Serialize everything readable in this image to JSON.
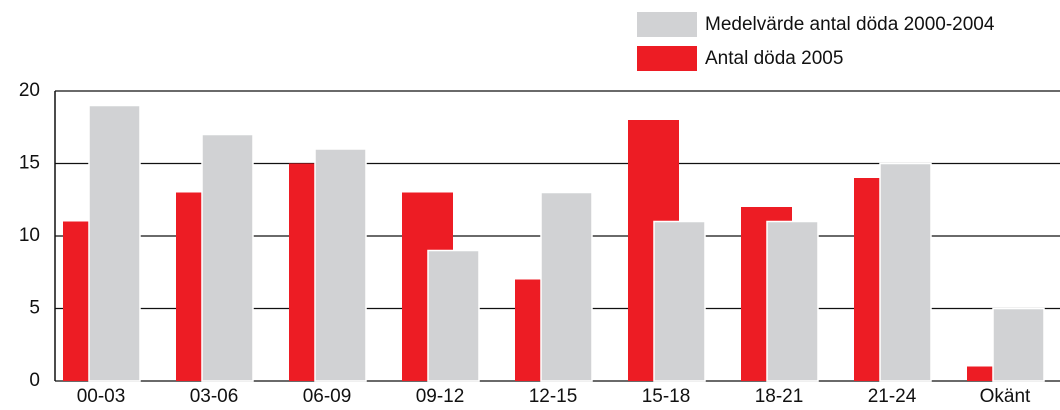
{
  "chart_data": {
    "type": "bar",
    "categories": [
      "00-03",
      "03-06",
      "06-09",
      "09-12",
      "12-15",
      "15-18",
      "18-21",
      "21-24",
      "Okänt"
    ],
    "series": [
      {
        "name": "Medelvärde antal döda 2000-2004",
        "color": "#d1d2d4",
        "values": [
          19,
          17,
          16,
          9,
          13,
          11,
          11,
          15,
          5
        ]
      },
      {
        "name": "Antal döda 2005",
        "color": "#ed1c24",
        "values": [
          11,
          13,
          15,
          13,
          7,
          18,
          12,
          14,
          1
        ]
      }
    ],
    "ylim": [
      0,
      20
    ],
    "yticks": [
      0,
      5,
      10,
      15,
      20
    ],
    "grid": true,
    "legend": "top-right"
  }
}
